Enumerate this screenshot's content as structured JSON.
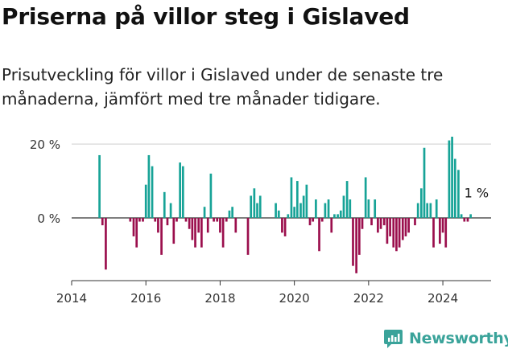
{
  "title": "Priserna på villor steg i Gislaved",
  "subtitle": "Prisutveckling för villor i Gislaved under de senaste tre månaderna, jämfört med tre månader tidigare.",
  "brand": "Newsworthy",
  "colors": {
    "positive": "#17a397",
    "negative": "#9b0f4d",
    "axis": "#333333",
    "grid": "#cccccc",
    "brand": "#3aa39a"
  },
  "chart_data": {
    "type": "bar",
    "ylim": [
      -17,
      22
    ],
    "yticks": [
      0,
      20
    ],
    "ytick_labels": [
      "0 %",
      "20 %"
    ],
    "xlim": [
      2014,
      2025.3
    ],
    "xticks": [
      2014,
      2016,
      2018,
      2020,
      2022,
      2024
    ],
    "xtick_labels": [
      "2014",
      "2016",
      "2018",
      "2020",
      "2022",
      "2024"
    ],
    "annotation": {
      "text": "1 %",
      "x": 2024.75,
      "y": 1
    },
    "series": [
      {
        "x": [
          2014.75,
          2014.83,
          2014.92,
          2015.58,
          2015.67,
          2015.75,
          2015.83,
          2015.92,
          2016.0,
          2016.08,
          2016.17,
          2016.25,
          2016.33,
          2016.42,
          2016.5,
          2016.58,
          2016.67,
          2016.75,
          2016.83,
          2016.92,
          2017.0,
          2017.08,
          2017.17,
          2017.25,
          2017.33,
          2017.42,
          2017.5,
          2017.58,
          2017.67,
          2017.75,
          2017.83,
          2017.92,
          2018.0,
          2018.08,
          2018.17,
          2018.25,
          2018.33,
          2018.42,
          2018.75,
          2018.83,
          2018.92,
          2019.0,
          2019.08,
          2019.5,
          2019.58,
          2019.67,
          2019.75,
          2019.83,
          2019.92,
          2020.0,
          2020.08,
          2020.17,
          2020.25,
          2020.33,
          2020.42,
          2020.5,
          2020.58,
          2020.67,
          2020.75,
          2020.83,
          2020.92,
          2021.0,
          2021.08,
          2021.17,
          2021.25,
          2021.33,
          2021.42,
          2021.5,
          2021.58,
          2021.67,
          2021.75,
          2021.83,
          2021.92,
          2022.0,
          2022.08,
          2022.17,
          2022.25,
          2022.33,
          2022.42,
          2022.5,
          2022.58,
          2022.67,
          2022.75,
          2022.83,
          2022.92,
          2023.0,
          2023.08,
          2023.25,
          2023.33,
          2023.42,
          2023.5,
          2023.58,
          2023.67,
          2023.75,
          2023.83,
          2023.92,
          2024.0,
          2024.08,
          2024.17,
          2024.25,
          2024.33,
          2024.42,
          2024.5,
          2024.58,
          2024.67,
          2024.75
        ],
        "values": [
          17,
          -2,
          -14,
          -1,
          -5,
          -8,
          -1,
          -1,
          9,
          17,
          14,
          -1,
          -4,
          -10,
          7,
          -2,
          4,
          -7,
          -1,
          15,
          14,
          -1,
          -3,
          -6,
          -8,
          -4,
          -8,
          3,
          -4,
          12,
          -1,
          -1,
          -4,
          -8,
          -1,
          2,
          3,
          -4,
          -10,
          6,
          8,
          4,
          6,
          4,
          2,
          -4,
          -5,
          1,
          11,
          3,
          10,
          4,
          6,
          9,
          -2,
          -1,
          5,
          -9,
          -1,
          4,
          5,
          -4,
          1,
          1,
          2,
          6,
          10,
          5,
          -13,
          -15,
          -10,
          -3,
          11,
          5,
          -2,
          5,
          -4,
          -3,
          -2,
          -7,
          -5,
          -8,
          -9,
          -8,
          -6,
          -5,
          -4,
          -2,
          4,
          8,
          19,
          4,
          4,
          -8,
          5,
          -7,
          -4,
          -8,
          21,
          22,
          16,
          13,
          1,
          -1,
          -1,
          1
        ]
      }
    ]
  }
}
